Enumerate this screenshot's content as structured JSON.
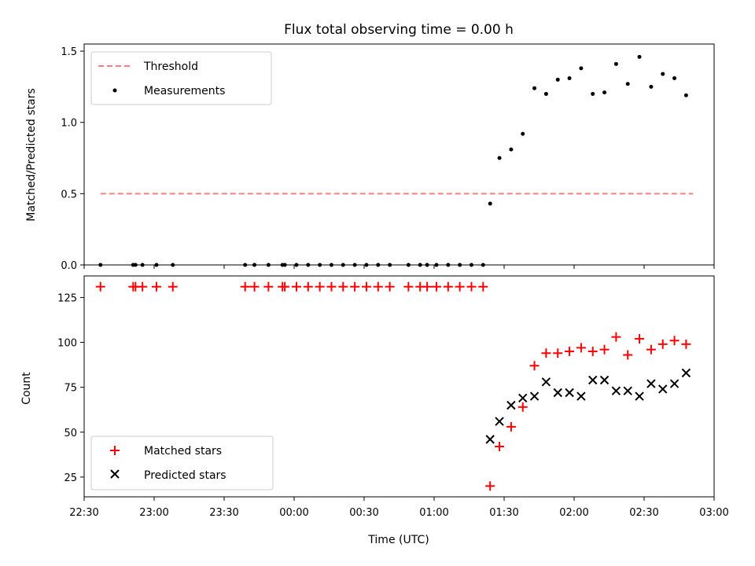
{
  "chart_data": [
    {
      "type": "scatter",
      "title": "Flux total observing time = 0.00 h",
      "xlabel": "",
      "ylabel": "Matched/Predicted stars",
      "ylim": [
        0,
        1.55
      ],
      "yticks": [
        0,
        0.5,
        1.0,
        1.5
      ],
      "ytick_labels": [
        "0.0",
        "0.5",
        "1.0",
        "1.5"
      ],
      "xlim": [
        "22:30",
        "03:00"
      ],
      "x_tick_labels_visible": false,
      "legend_position": "top-left",
      "series": [
        {
          "name": "Threshold",
          "style": "dashed-line",
          "color": "#ff7f7f",
          "x": [
            "22:37",
            "02:51"
          ],
          "y": [
            0.5,
            0.5
          ]
        },
        {
          "name": "Measurements",
          "style": "dot",
          "color": "#000000",
          "x": [
            "22:37",
            "22:51",
            "22:52",
            "22:55",
            "23:01",
            "23:08",
            "23:39",
            "23:43",
            "23:49",
            "23:55",
            "23:56",
            "24:01",
            "24:06",
            "24:11",
            "24:16",
            "24:21",
            "24:26",
            "24:31",
            "24:36",
            "24:41",
            "24:49",
            "24:54",
            "24:57",
            "25:01",
            "25:06",
            "25:11",
            "25:16",
            "25:21",
            "25:24",
            "25:28",
            "25:33",
            "25:38",
            "25:43",
            "25:48",
            "25:53",
            "25:58",
            "26:03",
            "26:08",
            "26:13",
            "26:18",
            "26:23",
            "26:28",
            "26:33",
            "26:38",
            "26:43",
            "26:48"
          ],
          "y": [
            0,
            0,
            0,
            0,
            0,
            0,
            0,
            0,
            0,
            0,
            0,
            0,
            0,
            0,
            0,
            0,
            0,
            0,
            0,
            0,
            0,
            0,
            0,
            0,
            0,
            0,
            0,
            0,
            0.43,
            0.75,
            0.81,
            0.92,
            1.24,
            1.2,
            1.3,
            1.31,
            1.38,
            1.2,
            1.21,
            1.41,
            1.27,
            1.46,
            1.25,
            1.34,
            1.31,
            1.19
          ]
        }
      ]
    },
    {
      "type": "scatter",
      "title": "",
      "xlabel": "Time (UTC)",
      "ylabel": "Count",
      "ylim": [
        14,
        137
      ],
      "yticks": [
        25,
        50,
        75,
        100,
        125
      ],
      "ytick_labels": [
        "25",
        "50",
        "75",
        "100",
        "125"
      ],
      "xlim": [
        "22:30",
        "03:00"
      ],
      "x_ticks": [
        "22:30",
        "23:00",
        "23:30",
        "00:00",
        "00:30",
        "01:00",
        "01:30",
        "02:00",
        "02:30",
        "03:00"
      ],
      "legend_position": "bottom-left",
      "series": [
        {
          "name": "Matched stars",
          "marker": "plus",
          "color": "#ff0000",
          "x": [
            "22:37",
            "22:51",
            "22:52",
            "22:55",
            "23:01",
            "23:08",
            "23:39",
            "23:43",
            "23:49",
            "23:55",
            "23:56",
            "24:01",
            "24:06",
            "24:11",
            "24:16",
            "24:21",
            "24:26",
            "24:31",
            "24:36",
            "24:41",
            "24:49",
            "24:54",
            "24:57",
            "25:01",
            "25:06",
            "25:11",
            "25:16",
            "25:21",
            "25:24",
            "25:28",
            "25:33",
            "25:38",
            "25:43",
            "25:48",
            "25:53",
            "25:58",
            "26:03",
            "26:08",
            "26:13",
            "26:18",
            "26:23",
            "26:28",
            "26:33",
            "26:38",
            "26:43",
            "26:48"
          ],
          "y": [
            131,
            131,
            131,
            131,
            131,
            131,
            131,
            131,
            131,
            131,
            131,
            131,
            131,
            131,
            131,
            131,
            131,
            131,
            131,
            131,
            131,
            131,
            131,
            131,
            131,
            131,
            131,
            131,
            20,
            42,
            53,
            64,
            87,
            94,
            94,
            95,
            97,
            95,
            96,
            103,
            93,
            102,
            96,
            99,
            101,
            99
          ]
        },
        {
          "name": "Predicted stars",
          "marker": "x",
          "color": "#000000",
          "x": [
            "25:24",
            "25:28",
            "25:33",
            "25:38",
            "25:43",
            "25:48",
            "25:53",
            "25:58",
            "26:03",
            "26:08",
            "26:13",
            "26:18",
            "26:23",
            "26:28",
            "26:33",
            "26:38",
            "26:43",
            "26:48"
          ],
          "y": [
            46,
            56,
            65,
            69,
            70,
            78,
            72,
            72,
            70,
            79,
            79,
            73,
            73,
            70,
            77,
            74,
            77,
            83
          ]
        }
      ]
    }
  ]
}
